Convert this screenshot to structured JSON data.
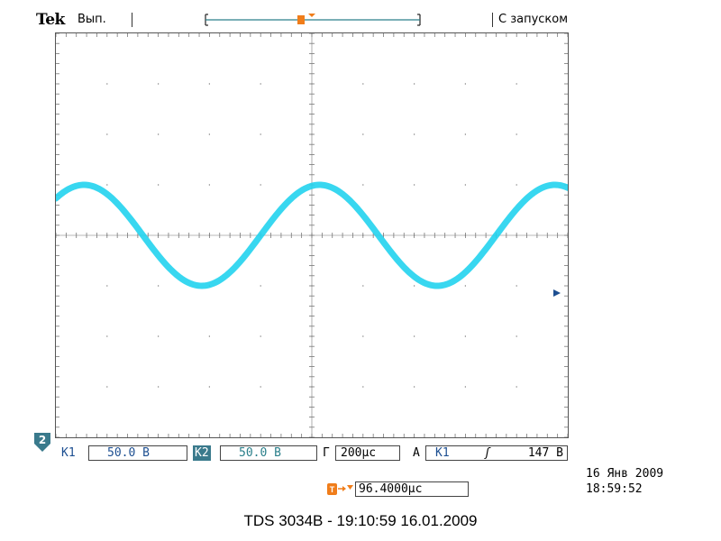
{
  "header": {
    "brand": "Tek",
    "acquisition_state": "Вып.",
    "trigger_mode": "С запуском"
  },
  "markers": {
    "trigger_marker_label": "T",
    "channel_ground_marker": "2"
  },
  "channels": {
    "ch1_label": "К1",
    "ch1_scale": "50.0 В",
    "ch2_label": "К2",
    "ch2_scale": "50.0 В"
  },
  "timebase": {
    "label": "Г",
    "value": "200μс"
  },
  "trigger": {
    "label": "А",
    "source": "К1",
    "slope_symbol": "ʃ",
    "level": "147 В"
  },
  "delay": {
    "value": "96.4000μс"
  },
  "datetime": {
    "date": "16 Янв 2009",
    "time": "18:59:52"
  },
  "caption": "TDS 3034B - 19:10:59   16.01.2009",
  "colors": {
    "trace": "#22d3ee",
    "trigger_orange": "#f07d1a",
    "channel_blue": "#1d4f91",
    "ch2_badge": "#3a7a8c",
    "grid": "#777777"
  },
  "waveform": {
    "divisions_x": 10,
    "divisions_y": 8,
    "period_div": 4.6,
    "amplitude_div": 1.0,
    "phase_at_left_div": -0.6
  }
}
